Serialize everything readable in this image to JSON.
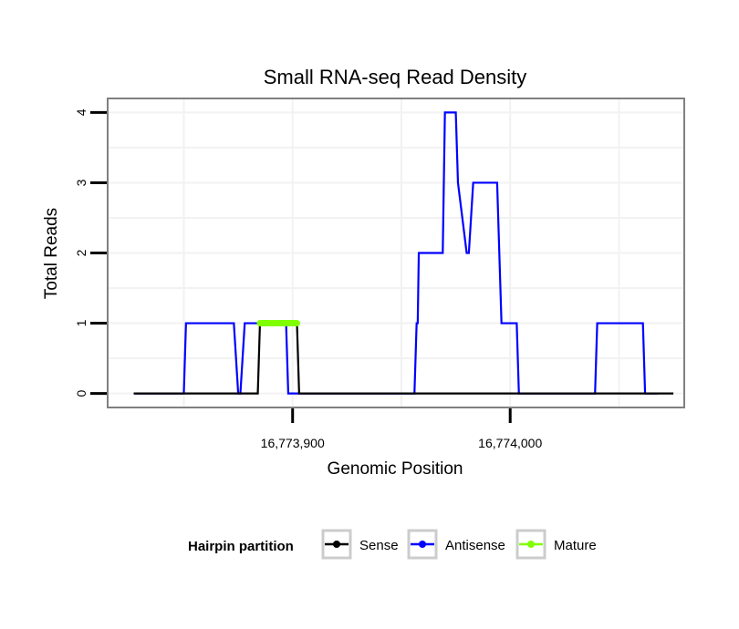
{
  "chart_data": {
    "type": "line",
    "title": "Small RNA-seq Read Density",
    "xlabel": "Genomic Position",
    "ylabel": "Total Reads",
    "xlim": [
      16773815,
      16774080
    ],
    "ylim": [
      -0.2,
      4.2
    ],
    "x_ticks": [
      {
        "value": 16773900,
        "label": "16,773,900"
      },
      {
        "value": 16774000,
        "label": "16,774,000"
      }
    ],
    "y_ticks": [
      {
        "value": 0,
        "label": "0"
      },
      {
        "value": 1,
        "label": "1"
      },
      {
        "value": 2,
        "label": "2"
      },
      {
        "value": 3,
        "label": "3"
      },
      {
        "value": 4,
        "label": "4"
      }
    ],
    "grid": true,
    "legend_position": "bottom",
    "legend_title": "Hairpin partition",
    "series": [
      {
        "name": "Antisense",
        "color": "#0000ff",
        "x": [
          16773827,
          16773850,
          16773851,
          16773873,
          16773875,
          16773876,
          16773878,
          16773879,
          16773887,
          16773897,
          16773898,
          16773901,
          16773956,
          16773957,
          16773957.5,
          16773958,
          16773959,
          16773969,
          16773970,
          16773975,
          16773976,
          16773980,
          16773981,
          16773983,
          16773984,
          16773994,
          16773996,
          16774003,
          16774004,
          16774039,
          16774040,
          16774061,
          16774062,
          16774068
        ],
        "y": [
          0,
          0,
          1,
          1,
          0,
          0,
          1,
          1,
          1,
          1,
          0,
          0,
          0,
          1,
          1,
          2,
          2,
          2,
          4,
          4,
          3,
          2,
          2,
          3,
          3,
          3,
          1,
          1,
          0,
          0,
          1,
          1,
          0,
          0
        ]
      },
      {
        "name": "Sense",
        "color": "#000000",
        "x": [
          16773827,
          16773884,
          16773885,
          16773902,
          16773903,
          16774075
        ],
        "y": [
          0,
          0,
          1,
          1,
          0,
          0
        ]
      },
      {
        "name": "Mature",
        "color": "#80ff00",
        "x": [
          16773885,
          16773902
        ],
        "y": [
          1,
          1
        ]
      }
    ]
  },
  "legend": {
    "title": "Hairpin partition",
    "items": [
      {
        "label": "Sense",
        "color": "#000000"
      },
      {
        "label": "Antisense",
        "color": "#0000ff"
      },
      {
        "label": "Mature",
        "color": "#80ff00"
      }
    ]
  }
}
